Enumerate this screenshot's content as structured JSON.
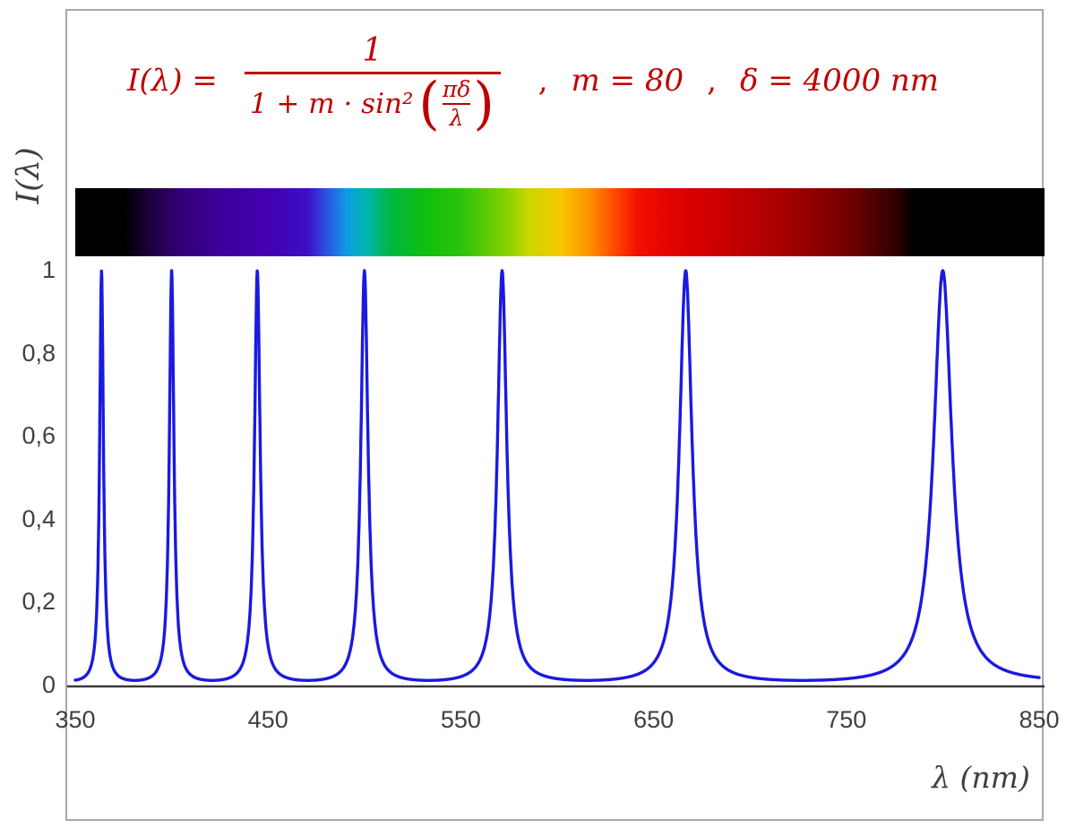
{
  "figure": {
    "background": "#ffffff",
    "border_color": "#a8a8a8"
  },
  "formula": {
    "color": "#c00000",
    "lhs": "I(λ) =",
    "numerator": "1",
    "denominator_prefix": "1 + m · sin²",
    "open_paren": "(",
    "inner_numerator": "πδ",
    "inner_denominator": "λ",
    "close_paren": ")",
    "separator1": ",",
    "param_m": "m = 80",
    "separator2": ",",
    "param_delta": "δ = 4000 nm"
  },
  "axes": {
    "ylabel": "I(λ)",
    "xlabel": "λ  (nm)",
    "y_ticks": [
      "1",
      "0,8",
      "0,6",
      "0,4",
      "0,2",
      "0"
    ],
    "x_ticks": [
      "350",
      "450",
      "550",
      "650",
      "750",
      "850"
    ]
  },
  "chart_data": {
    "type": "line",
    "title": "Fabry-Perot / Airy transmission function",
    "formula_text": "I(λ) = 1 / (1 + m·sin²(πδ/λ))",
    "parameters": {
      "m": 80,
      "delta_nm": 4000
    },
    "x": {
      "label": "λ (nm)",
      "min": 350,
      "max": 850,
      "ticks": [
        350,
        450,
        550,
        650,
        750,
        850
      ]
    },
    "y": {
      "label": "I(λ)",
      "min": 0,
      "max": 1,
      "ticks": [
        0,
        0.2,
        0.4,
        0.6,
        0.8,
        1
      ]
    },
    "grid": false,
    "legend": false,
    "series": [
      {
        "name": "I(λ)",
        "color": "#1a1ae0",
        "peak_wavelengths_nm": [
          363.6,
          400,
          444.4,
          500,
          571.4,
          666.7,
          800
        ],
        "peak_value": 1,
        "valley_value": 0.0123
      }
    ],
    "spectrum_bar": {
      "range_nm": [
        350,
        850
      ],
      "visible_nm": [
        380,
        780
      ],
      "stops": [
        {
          "pos": 0,
          "color": "#000000"
        },
        {
          "pos": 5,
          "color": "#000000"
        },
        {
          "pos": 7.5,
          "color": "#1b0036"
        },
        {
          "pos": 11,
          "color": "#33007a"
        },
        {
          "pos": 15,
          "color": "#3e0099"
        },
        {
          "pos": 20,
          "color": "#4400b0"
        },
        {
          "pos": 24,
          "color": "#3d0fc6"
        },
        {
          "pos": 26,
          "color": "#2a55e0"
        },
        {
          "pos": 28,
          "color": "#119ae5"
        },
        {
          "pos": 30,
          "color": "#00b5b0"
        },
        {
          "pos": 32.5,
          "color": "#00b840"
        },
        {
          "pos": 36,
          "color": "#0fbe10"
        },
        {
          "pos": 40,
          "color": "#2ec40a"
        },
        {
          "pos": 44,
          "color": "#7ccf00"
        },
        {
          "pos": 47,
          "color": "#cdd600"
        },
        {
          "pos": 50,
          "color": "#f5c800"
        },
        {
          "pos": 53,
          "color": "#ff9100"
        },
        {
          "pos": 56,
          "color": "#ff4000"
        },
        {
          "pos": 58,
          "color": "#f31000"
        },
        {
          "pos": 62,
          "color": "#e00000"
        },
        {
          "pos": 68,
          "color": "#c30000"
        },
        {
          "pos": 74,
          "color": "#a00000"
        },
        {
          "pos": 80,
          "color": "#700000"
        },
        {
          "pos": 85,
          "color": "#2a0000"
        },
        {
          "pos": 86.5,
          "color": "#000000"
        },
        {
          "pos": 100,
          "color": "#000000"
        }
      ]
    }
  }
}
